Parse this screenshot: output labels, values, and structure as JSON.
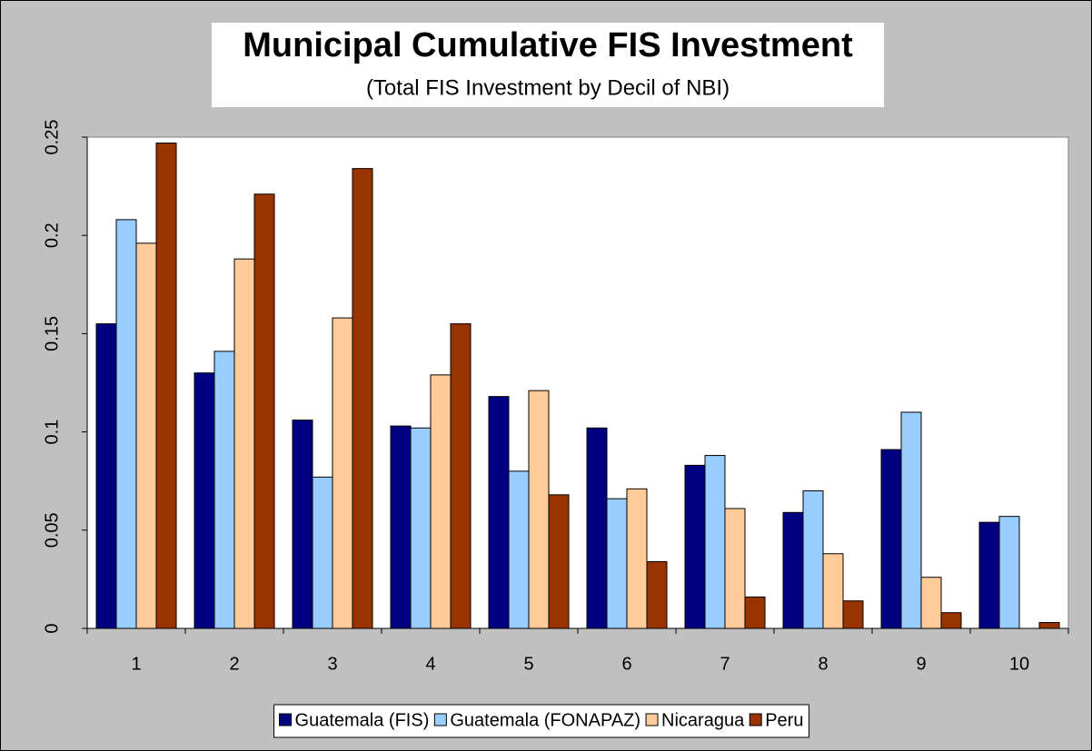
{
  "chart_data": {
    "type": "bar",
    "title": "Municipal Cumulative FIS Investment",
    "subtitle": "(Total FIS Investment by Decil of NBI)",
    "categories": [
      "1",
      "2",
      "3",
      "4",
      "5",
      "6",
      "7",
      "8",
      "9",
      "10"
    ],
    "series": [
      {
        "name": "Guatemala (FIS)",
        "color": "#000080",
        "values": [
          0.155,
          0.13,
          0.106,
          0.103,
          0.118,
          0.102,
          0.083,
          0.059,
          0.091,
          0.054
        ]
      },
      {
        "name": "Guatemala (FONAPAZ)",
        "color": "#99ccff",
        "values": [
          0.208,
          0.141,
          0.077,
          0.102,
          0.08,
          0.066,
          0.088,
          0.07,
          0.11,
          0.057
        ]
      },
      {
        "name": "Nicaragua",
        "color": "#ffcc99",
        "values": [
          0.196,
          0.188,
          0.158,
          0.129,
          0.121,
          0.071,
          0.061,
          0.038,
          0.026,
          null
        ]
      },
      {
        "name": "Peru",
        "color": "#993300",
        "values": [
          0.247,
          0.221,
          0.234,
          0.155,
          0.068,
          0.034,
          0.016,
          0.014,
          0.008,
          0.003
        ]
      }
    ],
    "ylim": [
      0,
      0.25
    ],
    "yticks": [
      0,
      0.05,
      0.1,
      0.15,
      0.2,
      0.25
    ],
    "grid": false,
    "legend": "bottom"
  }
}
